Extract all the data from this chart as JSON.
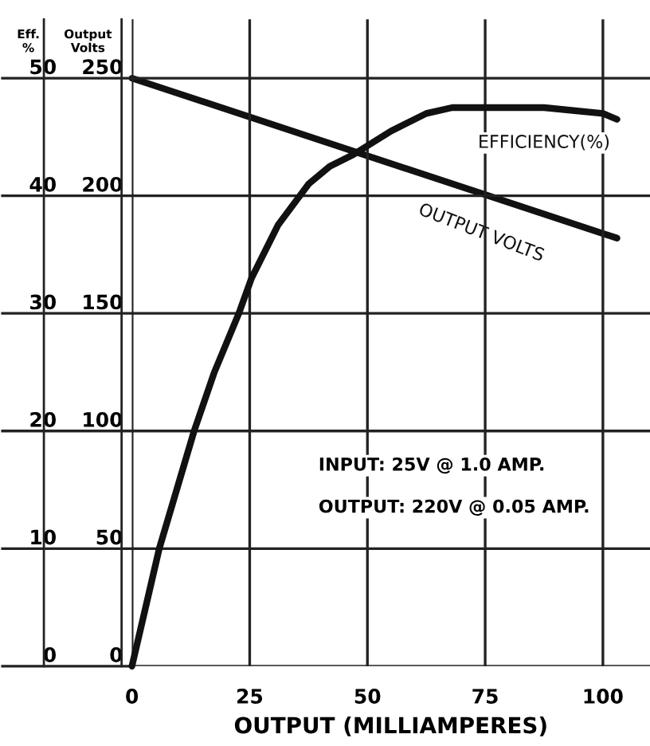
{
  "chart_data": {
    "type": "line",
    "xlabel": "OUTPUT (MILLIAMPERES)",
    "ylabel": "Eff.\n%",
    "y2label": "Output\nVolts",
    "xlim": [
      0,
      110
    ],
    "xticks": [
      0,
      25,
      50,
      75,
      100
    ],
    "ylim": [
      0,
      55
    ],
    "yticks": [
      0,
      10,
      20,
      30,
      40,
      50
    ],
    "y2lim": [
      0,
      275
    ],
    "y2ticks": [
      0,
      50,
      100,
      150,
      200,
      250
    ],
    "grid": true,
    "line_style": "solid",
    "marker": "none",
    "series": [
      {
        "name": "EFFICIENCY(%)",
        "color": "#111111",
        "x": [
          0,
          5.8,
          9.5,
          13.2,
          17.5,
          22.7,
          25.4,
          31,
          37.5,
          42,
          47,
          55,
          62.5,
          68,
          75,
          87.5,
          100,
          103
        ],
        "values": [
          0,
          10,
          15,
          20,
          25,
          30,
          33,
          37.5,
          41,
          42.5,
          43.5,
          45.5,
          47,
          47.5,
          47.5,
          47.5,
          47,
          46.5
        ]
      },
      {
        "name": "OUTPUT VOLTS",
        "color": "#111111",
        "axis": "y2",
        "x": [
          0,
          103
        ],
        "values": [
          250,
          182
        ]
      }
    ],
    "annotations": [
      "INPUT: 25V @ 1.0 AMP.",
      "OUTPUT: 220V @ 0.05 AMP."
    ]
  }
}
